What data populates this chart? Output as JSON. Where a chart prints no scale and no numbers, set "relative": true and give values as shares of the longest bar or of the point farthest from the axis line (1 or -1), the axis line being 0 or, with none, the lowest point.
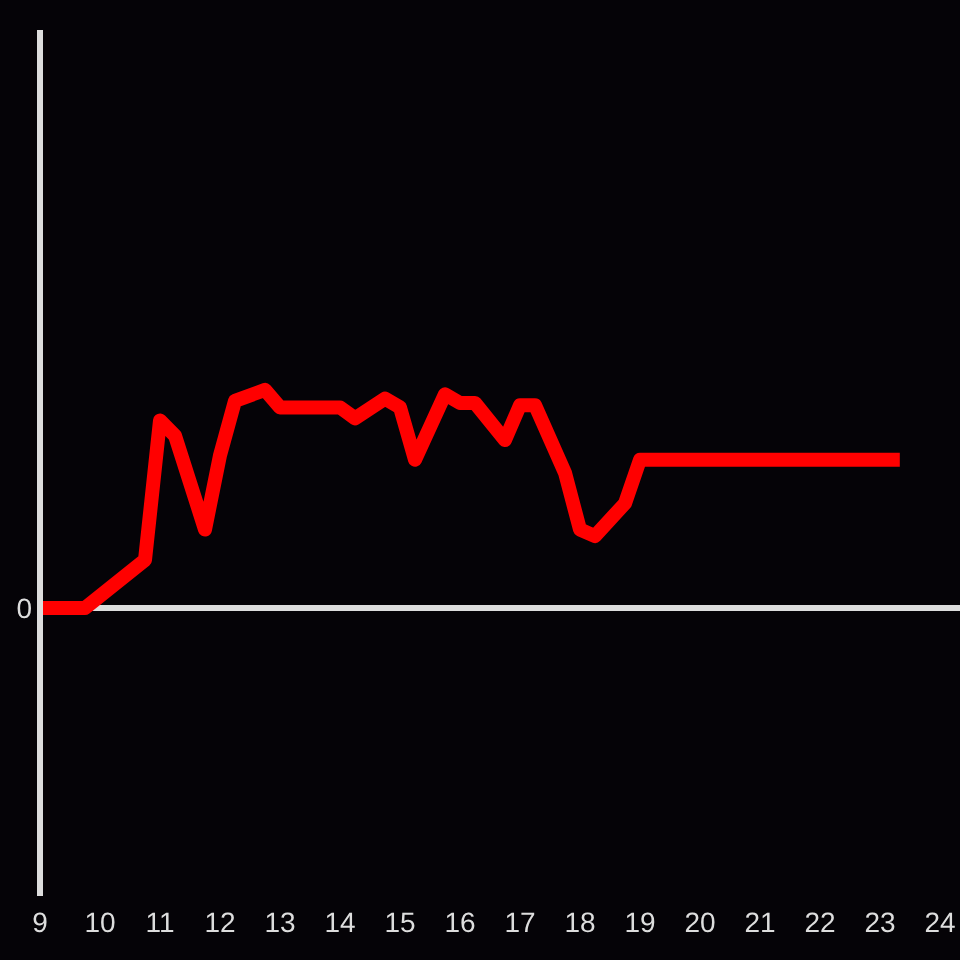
{
  "chart_data": {
    "type": "line",
    "relative": true,
    "x": [
      9,
      9.75,
      10.75,
      11,
      11.25,
      11.75,
      12,
      12.25,
      12.75,
      13,
      14,
      14.25,
      14.75,
      15,
      15.25,
      15.75,
      16,
      16.25,
      16.75,
      17,
      17.25,
      17.75,
      18,
      18.25,
      18.75,
      19,
      23.33
    ],
    "values": [
      0,
      0,
      0.22,
      0.86,
      0.79,
      0.36,
      0.7,
      0.95,
      1,
      0.92,
      0.92,
      0.87,
      0.96,
      0.92,
      0.68,
      0.98,
      0.94,
      0.94,
      0.77,
      0.93,
      0.93,
      0.62,
      0.36,
      0.33,
      0.48,
      0.68,
      0.68
    ],
    "color": "#ff0000",
    "xlim": [
      9,
      24
    ],
    "xticks": [
      9,
      10,
      11,
      12,
      13,
      14,
      15,
      16,
      17,
      18,
      19,
      20,
      21,
      22,
      23,
      24
    ],
    "annotations": [
      {
        "text": "0",
        "x": 9,
        "y": 0
      }
    ]
  }
}
